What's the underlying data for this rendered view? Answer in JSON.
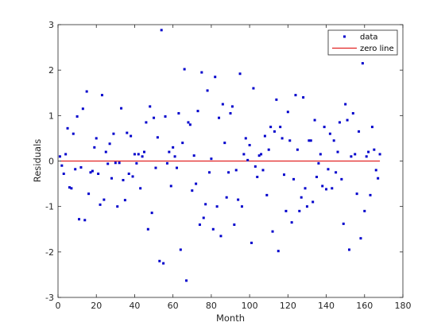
{
  "chart_data": {
    "type": "scatter",
    "xlabel": "Month",
    "ylabel": "Residuals",
    "xlim": [
      0,
      180
    ],
    "ylim": [
      -3,
      3
    ],
    "xticks": [
      "0",
      "20",
      "40",
      "60",
      "80",
      "100",
      "120",
      "140",
      "160",
      "180"
    ],
    "yticks": [
      "-3",
      "-2",
      "-1",
      "0",
      "1",
      "2",
      "3"
    ],
    "grid": false,
    "legend_position": "top-right",
    "colors": {
      "data": "#0000cc",
      "zero_line": "#dd0000",
      "axes": "#262626"
    },
    "series": [
      {
        "name": "data",
        "x": [
          1,
          2,
          3,
          4,
          5,
          6,
          7,
          8,
          9,
          10,
          11,
          12,
          13,
          14,
          15,
          16,
          17,
          18,
          19,
          20,
          21,
          22,
          23,
          24,
          25,
          26,
          27,
          28,
          29,
          30,
          31,
          32,
          33,
          34,
          35,
          36,
          37,
          38,
          39,
          40,
          41,
          42,
          43,
          44,
          45,
          46,
          47,
          48,
          49,
          50,
          51,
          52,
          53,
          54,
          55,
          56,
          57,
          58,
          59,
          60,
          61,
          62,
          63,
          64,
          65,
          66,
          67,
          68,
          69,
          70,
          71,
          72,
          73,
          74,
          75,
          76,
          77,
          78,
          79,
          80,
          81,
          82,
          83,
          84,
          85,
          86,
          87,
          88,
          89,
          90,
          91,
          92,
          93,
          94,
          95,
          96,
          97,
          98,
          99,
          100,
          101,
          102,
          103,
          104,
          105,
          106,
          107,
          108,
          109,
          110,
          111,
          112,
          113,
          114,
          115,
          116,
          117,
          118,
          119,
          120,
          121,
          122,
          123,
          124,
          125,
          126,
          127,
          128,
          129,
          130,
          131,
          132,
          133,
          134,
          135,
          136,
          137,
          138,
          139,
          140,
          141,
          142,
          143,
          144,
          145,
          146,
          147,
          148,
          149,
          150,
          151,
          152,
          153,
          154,
          155,
          156,
          157,
          158,
          159,
          160,
          161,
          162,
          163,
          164,
          165,
          166,
          167,
          168
        ],
        "y": [
          0.1,
          -0.1,
          -0.28,
          0.15,
          0.72,
          -0.58,
          -0.6,
          0.6,
          -0.18,
          0.98,
          -1.28,
          -0.14,
          1.15,
          -1.3,
          1.53,
          -0.72,
          -0.25,
          -0.22,
          0.3,
          0.5,
          -0.28,
          -0.96,
          1.45,
          -0.85,
          0.2,
          -0.06,
          0.38,
          -0.38,
          0.6,
          -0.04,
          -1.0,
          -0.04,
          1.16,
          -0.42,
          -0.86,
          0.62,
          -0.28,
          0.55,
          -0.34,
          0.15,
          -0.05,
          0.15,
          -0.6,
          0.1,
          0.2,
          0.85,
          -1.5,
          1.2,
          -1.14,
          0.95,
          -0.15,
          0.52,
          -2.2,
          2.88,
          -2.25,
          0.98,
          -0.05,
          0.2,
          -0.55,
          0.3,
          0.1,
          -0.15,
          1.05,
          -1.95,
          0.4,
          2.02,
          -2.63,
          0.85,
          0.8,
          -0.65,
          0.12,
          -0.5,
          1.1,
          -1.4,
          1.95,
          -1.25,
          -0.95,
          1.55,
          -0.25,
          0.05,
          -1.5,
          1.85,
          -1.0,
          0.95,
          -1.65,
          1.25,
          0.4,
          -0.8,
          -0.25,
          1.05,
          1.2,
          -1.4,
          -0.2,
          -0.85,
          1.92,
          -1.0,
          0.15,
          0.5,
          0.02,
          0.35,
          -1.8,
          1.6,
          -0.12,
          -0.35,
          0.12,
          0.15,
          -0.2,
          0.55,
          -0.75,
          0.25,
          0.75,
          -1.55,
          0.65,
          1.35,
          -1.98,
          0.75,
          0.5,
          -0.3,
          -1.1,
          1.08,
          0.45,
          -1.35,
          -0.4,
          1.45,
          0.25,
          -1.1,
          -0.8,
          1.4,
          -0.6,
          -1.0,
          0.45,
          0.45,
          -0.9,
          0.9,
          -0.35,
          -0.05,
          0.15,
          -0.55,
          0.75,
          -0.62,
          -0.18,
          0.6,
          -0.6,
          0.45,
          -0.25,
          0.2,
          0.85,
          -0.4,
          -1.38,
          1.25,
          0.9,
          -1.95,
          0.1,
          1.05,
          0.15,
          -0.72,
          0.65,
          -1.7,
          2.15,
          -1.1,
          0.1,
          0.2,
          -0.75,
          0.75,
          0.25,
          -0.2,
          -0.38,
          0.15
        ]
      },
      {
        "name": "zero line",
        "x": [
          1,
          168
        ],
        "y": [
          0,
          0
        ]
      }
    ]
  }
}
